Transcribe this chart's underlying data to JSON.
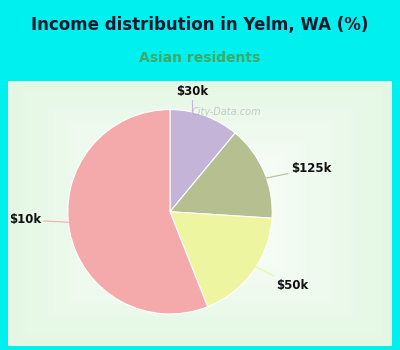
{
  "title": "Income distribution in Yelm, WA (%)",
  "subtitle": "Asian residents",
  "slices": [
    {
      "label": "$30k",
      "value": 11,
      "color": "#c4b4d8"
    },
    {
      "label": "$125k",
      "value": 15,
      "color": "#b5bf90"
    },
    {
      "label": "$50k",
      "value": 18,
      "color": "#eef5a0"
    },
    {
      "label": "$10k",
      "value": 56,
      "color": "#f4aaaa"
    }
  ],
  "title_color": "#1a1a2e",
  "subtitle_color": "#3aaa6a",
  "background_top": "#00efef",
  "label_color": "#111111",
  "label_fontsize": 8.5,
  "title_fontsize": 12,
  "subtitle_fontsize": 10,
  "watermark_color": "#aaaaaa"
}
